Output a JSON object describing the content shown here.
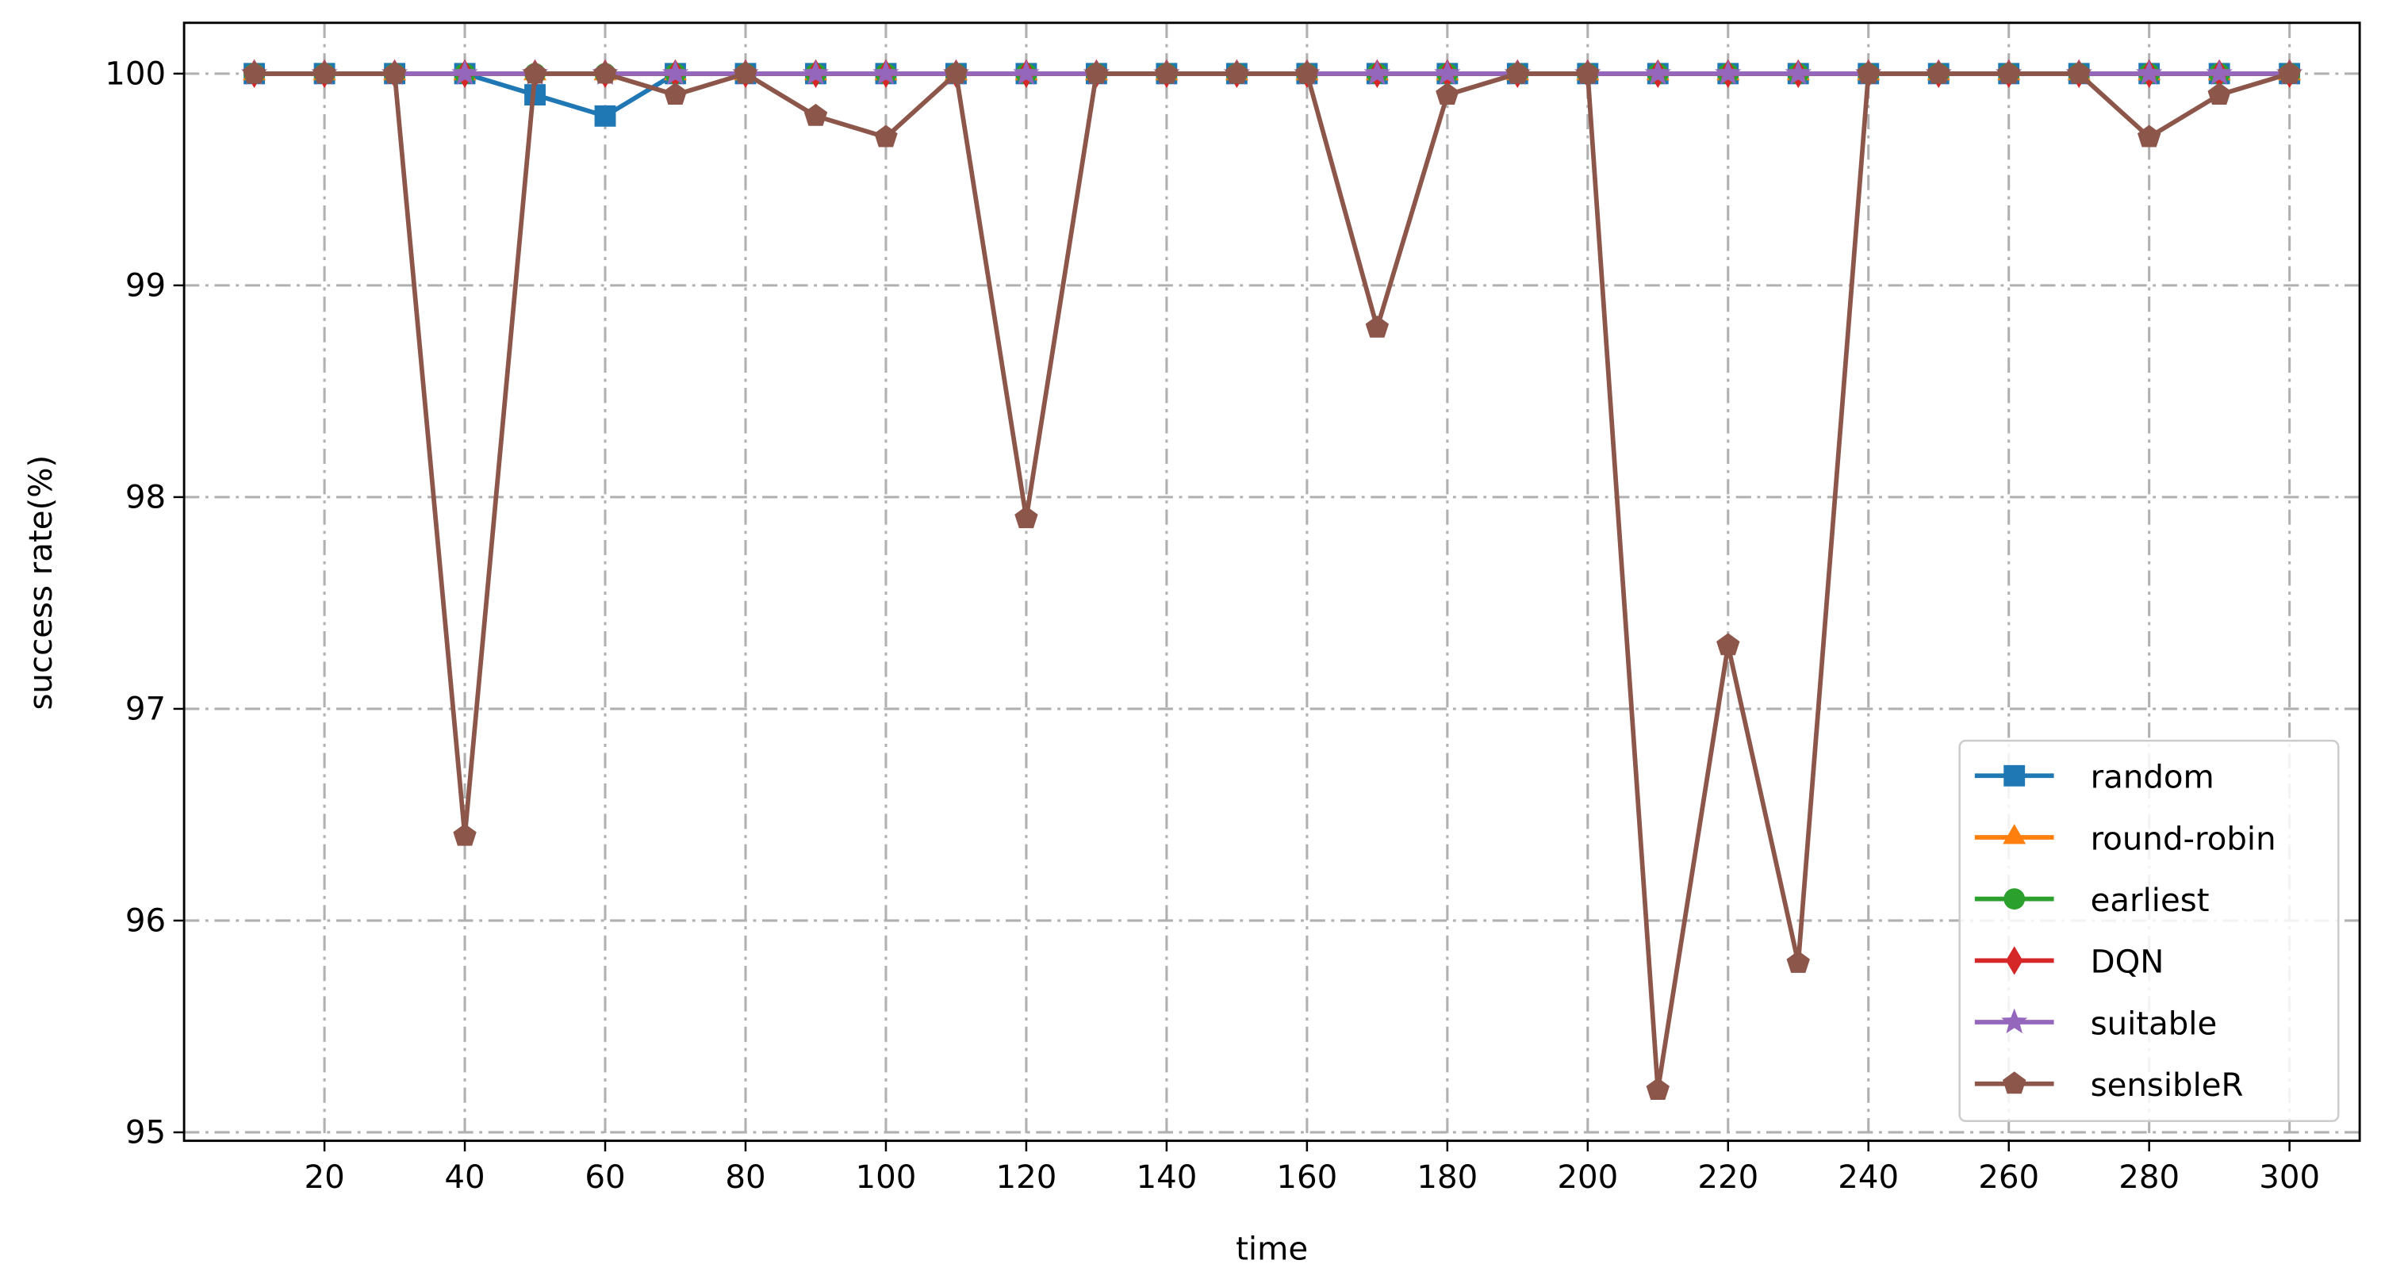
{
  "chart_data": {
    "type": "line",
    "xlabel": "time",
    "ylabel": "success rate(%)",
    "x": [
      10,
      20,
      30,
      40,
      50,
      60,
      70,
      80,
      90,
      100,
      110,
      120,
      130,
      140,
      150,
      160,
      170,
      180,
      190,
      200,
      210,
      220,
      230,
      240,
      250,
      260,
      270,
      280,
      290,
      300
    ],
    "series": [
      {
        "name": "random",
        "color": "#1f77b4",
        "marker": "square",
        "values": [
          100,
          100,
          100,
          100,
          99.9,
          99.8,
          100,
          100,
          100,
          100,
          100,
          100,
          100,
          100,
          100,
          100,
          100,
          100,
          100,
          100,
          100,
          100,
          100,
          100,
          100,
          100,
          100,
          100,
          100,
          100
        ]
      },
      {
        "name": "round-robin",
        "color": "#ff7f0e",
        "marker": "triangle",
        "values": [
          100,
          100,
          100,
          100,
          100,
          100,
          100,
          100,
          100,
          100,
          100,
          100,
          100,
          100,
          100,
          100,
          100,
          100,
          100,
          100,
          100,
          100,
          100,
          100,
          100,
          100,
          100,
          100,
          100,
          100
        ]
      },
      {
        "name": "earliest",
        "color": "#2ca02c",
        "marker": "circle",
        "values": [
          100,
          100,
          100,
          100,
          100,
          100,
          100,
          100,
          100,
          100,
          100,
          100,
          100,
          100,
          100,
          100,
          100,
          100,
          100,
          100,
          100,
          100,
          100,
          100,
          100,
          100,
          100,
          100,
          100,
          100
        ]
      },
      {
        "name": "DQN",
        "color": "#d62728",
        "marker": "diamond",
        "values": [
          100,
          100,
          100,
          100,
          100,
          100,
          100,
          100,
          100,
          100,
          100,
          100,
          100,
          100,
          100,
          100,
          100,
          100,
          100,
          100,
          100,
          100,
          100,
          100,
          100,
          100,
          100,
          100,
          100,
          100
        ]
      },
      {
        "name": "suitable",
        "color": "#9467bd",
        "marker": "star",
        "values": [
          100,
          100,
          100,
          100,
          100,
          100,
          100,
          100,
          100,
          100,
          100,
          100,
          100,
          100,
          100,
          100,
          100,
          100,
          100,
          100,
          100,
          100,
          100,
          100,
          100,
          100,
          100,
          100,
          100,
          100
        ]
      },
      {
        "name": "sensibleR",
        "color": "#8c564b",
        "marker": "pentagon",
        "values": [
          100,
          100,
          100,
          96.4,
          100,
          100,
          99.9,
          100,
          99.8,
          99.7,
          100,
          97.9,
          100,
          100,
          100,
          100,
          98.8,
          99.9,
          100,
          100,
          95.2,
          97.3,
          95.8,
          100,
          100,
          100,
          100,
          99.7,
          99.9,
          100
        ]
      }
    ],
    "xlim": [
      0,
      310
    ],
    "xticks": [
      20,
      40,
      60,
      80,
      100,
      120,
      140,
      160,
      180,
      200,
      220,
      240,
      260,
      280,
      300
    ],
    "ylim": [
      94.96,
      100.24
    ],
    "yticks": [
      95,
      96,
      97,
      98,
      99,
      100
    ],
    "grid": true,
    "legend": "lower right"
  }
}
